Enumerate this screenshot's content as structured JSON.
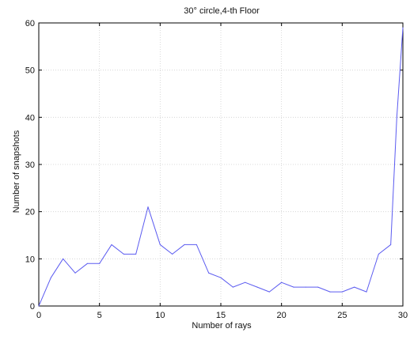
{
  "chart_data": {
    "type": "line",
    "title": "30° circle,4-th Floor",
    "xlabel": "Number of rays",
    "ylabel": "Number of snapshots",
    "xlim": [
      0,
      30
    ],
    "ylim": [
      0,
      60
    ],
    "xticks": [
      0,
      5,
      10,
      15,
      20,
      25,
      30
    ],
    "yticks": [
      0,
      10,
      20,
      30,
      40,
      50,
      60
    ],
    "grid": true,
    "series": [
      {
        "color": "#5b5bf0",
        "x": [
          0,
          1,
          2,
          3,
          4,
          5,
          6,
          7,
          8,
          9,
          10,
          11,
          12,
          13,
          14,
          15,
          16,
          17,
          18,
          19,
          20,
          21,
          22,
          23,
          24,
          25,
          26,
          27,
          28,
          29,
          29.5,
          30
        ],
        "y": [
          0,
          6,
          10,
          7,
          9,
          9,
          13,
          11,
          11,
          21,
          13,
          11,
          13,
          13,
          7,
          6,
          4,
          5,
          4,
          3,
          5,
          4,
          4,
          4,
          3,
          3,
          4,
          3,
          11,
          13,
          40,
          59
        ]
      }
    ]
  }
}
